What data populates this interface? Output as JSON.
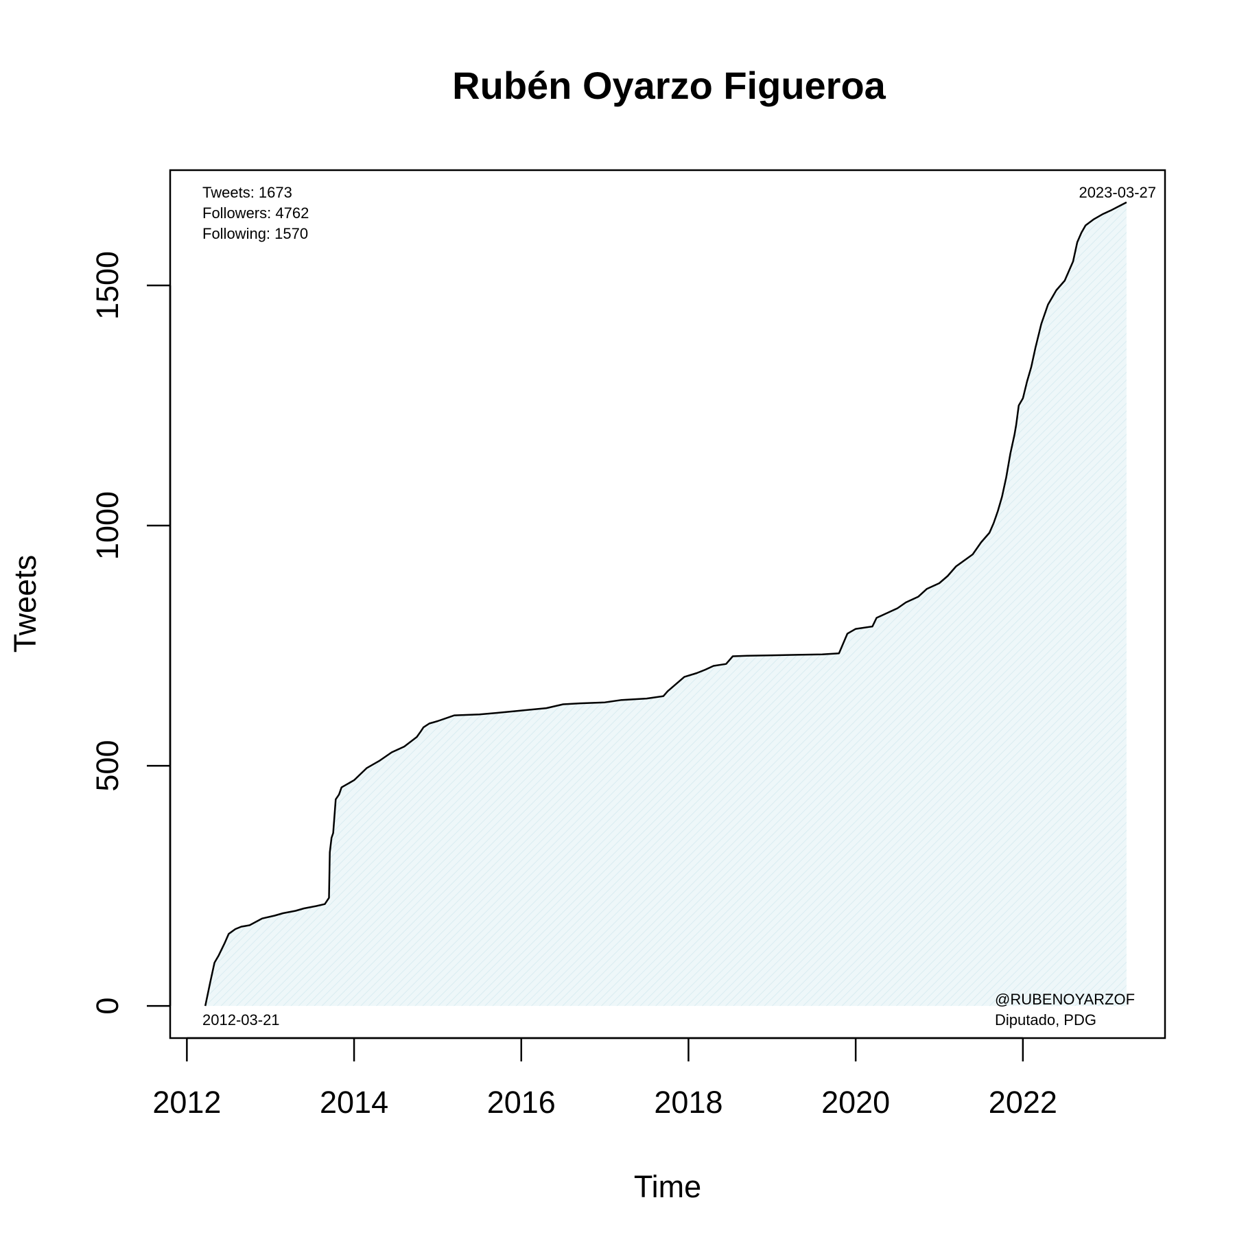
{
  "chart_data": {
    "type": "area",
    "title": "Rubén Oyarzo Figueroa",
    "xlabel": "Time",
    "ylabel": "Tweets",
    "xlim": [
      2011.8,
      2023.7
    ],
    "ylim": [
      -67,
      1740
    ],
    "x_ticks": [
      2012,
      2014,
      2016,
      2018,
      2020,
      2022
    ],
    "y_ticks": [
      0,
      500,
      1000,
      1500
    ],
    "grid": false,
    "fill_color": "#e6f3f6",
    "line_color": "#000000",
    "annotations": {
      "stats": [
        "Tweets: 1673",
        "Followers: 4762",
        "Following: 1570"
      ],
      "start_date": "2012-03-21",
      "end_date": "2023-03-27",
      "handle": "@RUBENOYARZOF",
      "role": "Diputado, PDG"
    },
    "series": [
      {
        "x": [
          2012.22,
          2012.28,
          2012.33,
          2012.38,
          2012.45,
          2012.5,
          2012.58,
          2012.65,
          2012.75,
          2012.9,
          2013.05,
          2013.15,
          2013.3,
          2013.4,
          2013.55,
          2013.65,
          2013.7,
          2013.71,
          2013.73,
          2013.75,
          2013.78,
          2013.82,
          2013.85,
          2014.0,
          2014.15,
          2014.3,
          2014.45,
          2014.6,
          2014.75,
          2014.8,
          2014.83,
          2014.9,
          2015.0,
          2015.2,
          2015.5,
          2015.7,
          2016.0,
          2016.3,
          2016.5,
          2016.7,
          2017.0,
          2017.2,
          2017.5,
          2017.7,
          2017.75,
          2017.85,
          2017.95,
          2018.1,
          2018.2,
          2018.3,
          2018.45,
          2018.53,
          2018.7,
          2019.0,
          2019.3,
          2019.6,
          2019.8,
          2019.9,
          2020.0,
          2020.2,
          2020.25,
          2020.4,
          2020.5,
          2020.6,
          2020.75,
          2020.85,
          2021.0,
          2021.1,
          2021.2,
          2021.4,
          2021.5,
          2021.6,
          2021.65,
          2021.7,
          2021.75,
          2021.8,
          2021.85,
          2021.9,
          2021.92,
          2021.95,
          2022.0,
          2022.05,
          2022.1,
          2022.15,
          2022.22,
          2022.3,
          2022.35,
          2022.4,
          2022.5,
          2022.55,
          2022.6,
          2022.65,
          2022.7,
          2022.75,
          2022.85,
          2022.95,
          2023.05,
          2023.15,
          2023.24
        ],
        "y": [
          0,
          50,
          90,
          105,
          130,
          150,
          160,
          165,
          168,
          182,
          188,
          193,
          198,
          203,
          208,
          212,
          225,
          320,
          350,
          360,
          430,
          440,
          455,
          470,
          495,
          510,
          528,
          540,
          560,
          572,
          580,
          588,
          593,
          605,
          607,
          610,
          615,
          620,
          628,
          630,
          632,
          637,
          640,
          645,
          655,
          670,
          685,
          693,
          700,
          708,
          712,
          728,
          729,
          730,
          731,
          732,
          734,
          775,
          785,
          790,
          808,
          820,
          828,
          840,
          852,
          868,
          880,
          895,
          915,
          940,
          965,
          985,
          1005,
          1030,
          1060,
          1100,
          1150,
          1190,
          1210,
          1250,
          1265,
          1300,
          1330,
          1370,
          1420,
          1460,
          1475,
          1490,
          1510,
          1530,
          1550,
          1590,
          1610,
          1625,
          1638,
          1648,
          1656,
          1665,
          1673
        ]
      }
    ]
  }
}
